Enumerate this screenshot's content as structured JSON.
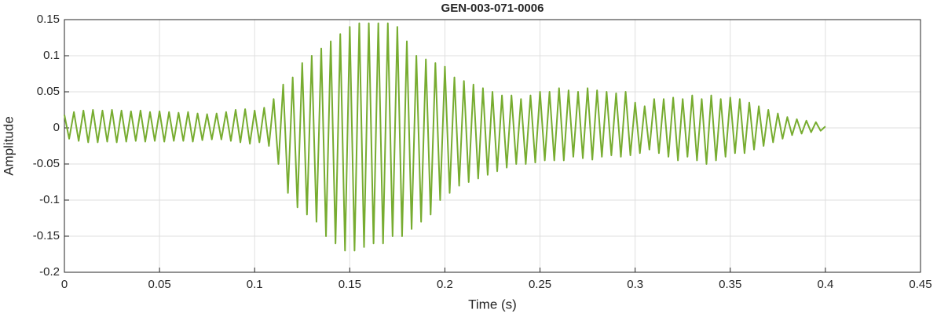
{
  "chart_data": {
    "type": "line",
    "title": "GEN-003-071-0006",
    "xlabel": "Time (s)",
    "ylabel": "Amplitude",
    "color": "#77ac30",
    "grid": true,
    "xlim": [
      0,
      0.45
    ],
    "xticks": [
      0,
      0.05,
      0.1,
      0.15,
      0.2,
      0.25,
      0.3,
      0.35,
      0.4,
      0.45
    ],
    "ylim": [
      -0.2,
      0.15
    ],
    "yticks": [
      -0.2,
      -0.15,
      -0.1,
      -0.05,
      0,
      0.05,
      0.1,
      0.15
    ],
    "x": [
      0,
      0.0025,
      0.005,
      0.0075,
      0.01,
      0.0125,
      0.015,
      0.0175,
      0.02,
      0.0225,
      0.025,
      0.0275,
      0.03,
      0.0325,
      0.035,
      0.0375,
      0.04,
      0.0425,
      0.045,
      0.0475,
      0.05,
      0.0525,
      0.055,
      0.0575,
      0.06,
      0.0625,
      0.065,
      0.0675,
      0.07,
      0.0725,
      0.075,
      0.0775,
      0.08,
      0.0825,
      0.085,
      0.0875,
      0.09,
      0.0925,
      0.095,
      0.0975,
      0.1,
      0.1025,
      0.105,
      0.1075,
      0.11,
      0.1125,
      0.115,
      0.1175,
      0.12,
      0.1225,
      0.125,
      0.1275,
      0.13,
      0.1325,
      0.135,
      0.1375,
      0.14,
      0.1425,
      0.145,
      0.1475,
      0.15,
      0.1525,
      0.155,
      0.1575,
      0.16,
      0.1625,
      0.165,
      0.1675,
      0.17,
      0.1725,
      0.175,
      0.1775,
      0.18,
      0.1825,
      0.185,
      0.1875,
      0.19,
      0.1925,
      0.195,
      0.1975,
      0.2,
      0.2025,
      0.205,
      0.2075,
      0.21,
      0.2125,
      0.215,
      0.2175,
      0.22,
      0.2225,
      0.225,
      0.2275,
      0.23,
      0.2325,
      0.235,
      0.2375,
      0.24,
      0.2425,
      0.245,
      0.2475,
      0.25,
      0.2525,
      0.255,
      0.2575,
      0.26,
      0.2625,
      0.265,
      0.2675,
      0.27,
      0.2725,
      0.275,
      0.2775,
      0.28,
      0.2825,
      0.285,
      0.2875,
      0.29,
      0.2925,
      0.295,
      0.2975,
      0.3,
      0.3025,
      0.305,
      0.3075,
      0.31,
      0.3125,
      0.315,
      0.3175,
      0.32,
      0.3225,
      0.325,
      0.3275,
      0.33,
      0.3325,
      0.335,
      0.3375,
      0.34,
      0.3425,
      0.345,
      0.3475,
      0.35,
      0.3525,
      0.355,
      0.3575,
      0.36,
      0.3625,
      0.365,
      0.3675,
      0.37,
      0.3725,
      0.375,
      0.3775,
      0.38,
      0.3825,
      0.385,
      0.3875,
      0.39,
      0.3925,
      0.395,
      0.3975,
      0.4
    ],
    "values": [
      0.018,
      -0.015,
      0.022,
      -0.018,
      0.024,
      -0.02,
      0.025,
      -0.02,
      0.024,
      -0.019,
      0.025,
      -0.02,
      0.024,
      -0.019,
      0.023,
      -0.018,
      0.024,
      -0.019,
      0.022,
      -0.018,
      0.023,
      -0.019,
      0.022,
      -0.018,
      0.021,
      -0.018,
      0.022,
      -0.019,
      0.02,
      -0.017,
      0.019,
      -0.016,
      0.02,
      -0.016,
      0.022,
      -0.018,
      0.025,
      -0.02,
      0.026,
      -0.022,
      0.024,
      -0.02,
      0.028,
      -0.025,
      0.04,
      -0.05,
      0.06,
      -0.09,
      0.07,
      -0.11,
      0.09,
      -0.12,
      0.1,
      -0.13,
      0.11,
      -0.15,
      0.12,
      -0.16,
      0.13,
      -0.17,
      0.14,
      -0.17,
      0.145,
      -0.165,
      0.145,
      -0.16,
      0.145,
      -0.16,
      0.145,
      -0.15,
      0.14,
      -0.15,
      0.12,
      -0.14,
      0.1,
      -0.13,
      0.095,
      -0.12,
      0.09,
      -0.1,
      0.085,
      -0.09,
      0.07,
      -0.08,
      0.065,
      -0.075,
      0.06,
      -0.07,
      0.055,
      -0.065,
      0.05,
      -0.06,
      0.045,
      -0.055,
      0.045,
      -0.05,
      0.04,
      -0.05,
      0.045,
      -0.048,
      0.05,
      -0.045,
      0.05,
      -0.045,
      0.055,
      -0.045,
      0.052,
      -0.04,
      0.05,
      -0.042,
      0.055,
      -0.044,
      0.052,
      -0.04,
      0.05,
      -0.038,
      0.048,
      -0.04,
      0.05,
      -0.038,
      0.035,
      -0.035,
      0.03,
      -0.03,
      0.04,
      -0.035,
      0.04,
      -0.04,
      0.042,
      -0.045,
      0.04,
      -0.04,
      0.045,
      -0.045,
      0.04,
      -0.05,
      0.045,
      -0.045,
      0.04,
      -0.04,
      0.042,
      -0.035,
      0.04,
      -0.035,
      0.035,
      -0.03,
      0.03,
      -0.025,
      0.025,
      -0.02,
      0.02,
      -0.015,
      0.015,
      -0.01,
      0.012,
      -0.008,
      0.01,
      -0.006,
      0.008,
      -0.004,
      0.002
    ]
  }
}
